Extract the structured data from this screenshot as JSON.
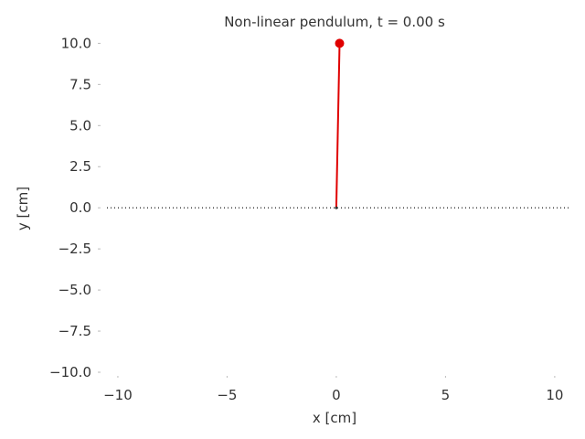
{
  "chart_data": {
    "type": "line",
    "title": "Non-linear pendulum, t = 0.00 s",
    "xlabel": "x [cm]",
    "ylabel": "y [cm]",
    "xlim": [
      -10.5,
      10.8
    ],
    "ylim": [
      -10.5,
      10.8
    ],
    "xticks": [
      -10,
      -5,
      0,
      5,
      10
    ],
    "xtick_labels": [
      "−10",
      "−5",
      "0",
      "5",
      "10"
    ],
    "yticks": [
      10.0,
      7.5,
      5.0,
      2.5,
      0.0,
      -2.5,
      -5.0,
      -7.5,
      -10.0
    ],
    "ytick_labels": [
      "10.0",
      "7.5",
      "5.0",
      "2.5",
      "0.0",
      "−2.5",
      "−5.0",
      "−7.5",
      "−10.0"
    ],
    "grid": false,
    "pivot": {
      "x": 0.0,
      "y": 0.0
    },
    "bob": {
      "x": 0.15,
      "y": 10.0
    },
    "rod_color": "#e00000",
    "bob_color": "#e00000",
    "horizontal_line": {
      "y": 0.0,
      "style": "dotted",
      "color": "#000000"
    }
  }
}
